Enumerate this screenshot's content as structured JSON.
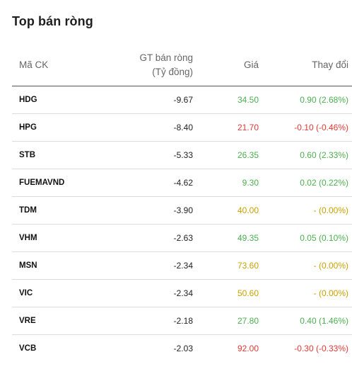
{
  "title": "Top bán ròng",
  "headers": {
    "code": "Mã CK",
    "value_line1": "GT bán ròng",
    "value_line2": "(Tỷ đồng)",
    "price": "Giá",
    "change": "Thay đổi"
  },
  "colors": {
    "up": "#4caf50",
    "down": "#e53935",
    "ref": "#c9a100"
  },
  "rows": [
    {
      "code": "HDG",
      "value": "-9.67",
      "price": "34.50",
      "change": "0.90 (2.68%)",
      "trend": "up"
    },
    {
      "code": "HPG",
      "value": "-8.40",
      "price": "21.70",
      "change": "-0.10 (-0.46%)",
      "trend": "down"
    },
    {
      "code": "STB",
      "value": "-5.33",
      "price": "26.35",
      "change": "0.60 (2.33%)",
      "trend": "up"
    },
    {
      "code": "FUEMAVND",
      "value": "-4.62",
      "price": "9.30",
      "change": "0.02 (0.22%)",
      "trend": "up"
    },
    {
      "code": "TDM",
      "value": "-3.90",
      "price": "40.00",
      "change": "- (0.00%)",
      "trend": "ref"
    },
    {
      "code": "VHM",
      "value": "-2.63",
      "price": "49.35",
      "change": "0.05 (0.10%)",
      "trend": "up"
    },
    {
      "code": "MSN",
      "value": "-2.34",
      "price": "73.60",
      "change": "- (0.00%)",
      "trend": "ref"
    },
    {
      "code": "VIC",
      "value": "-2.34",
      "price": "50.60",
      "change": "- (0.00%)",
      "trend": "ref"
    },
    {
      "code": "VRE",
      "value": "-2.18",
      "price": "27.80",
      "change": "0.40 (1.46%)",
      "trend": "up"
    },
    {
      "code": "VCB",
      "value": "-2.03",
      "price": "92.00",
      "change": "-0.30 (-0.33%)",
      "trend": "down"
    }
  ]
}
